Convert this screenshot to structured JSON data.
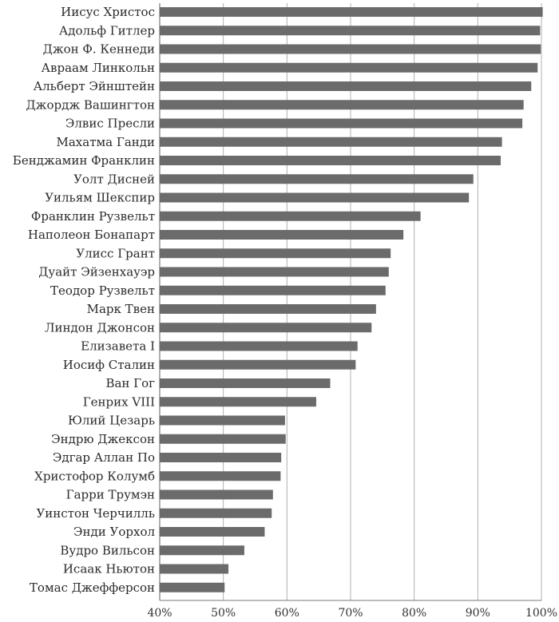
{
  "chart_data": {
    "type": "bar",
    "orientation": "horizontal",
    "title": "",
    "xlabel": "",
    "ylabel": "",
    "categories": [
      "Иисус Христос",
      "Адольф Гитлер",
      "Джон Ф. Кеннеди",
      "Авраам Линкольн",
      "Альберт Эйнштейн",
      "Джордж Вашингтон",
      "Элвис Пресли",
      "Махатма Ганди",
      "Бенджамин Франклин",
      "Уолт Дисней",
      "Уильям Шекспир",
      "Франклин Рузвельт",
      "Наполеон Бонапарт",
      "Улисс Грант",
      "Дуайт Эйзенхауэр",
      "Теодор Рузвельт",
      "Марк Твен",
      "Линдон Джонсон",
      "Елизавета I",
      "Иосиф Сталин",
      "Ван Гог",
      "Генрих VIII",
      "Юлий Цезарь",
      "Эндрю Джексон",
      "Эдгар Аллан По",
      "Христофор Колумб",
      "Гарри Трумэн",
      "Уинстон Черчилль",
      "Энди Уорхол",
      "Вудро Вильсон",
      "Исаак Ньютон",
      "Томас Джефферсон"
    ],
    "values": [
      100.2,
      99.8,
      99.9,
      99.4,
      98.4,
      97.2,
      97.0,
      93.8,
      93.6,
      89.3,
      88.6,
      81.0,
      78.3,
      76.3,
      76.0,
      75.5,
      74.0,
      73.3,
      71.1,
      70.8,
      66.8,
      64.6,
      59.7,
      59.8,
      59.1,
      59.0,
      57.8,
      57.6,
      56.5,
      53.3,
      50.8,
      50.2
    ],
    "xlim": [
      40,
      100
    ],
    "xticks": [
      40,
      50,
      60,
      70,
      80,
      90,
      100
    ],
    "xtick_labels": [
      "40%",
      "50%",
      "60%",
      "70%",
      "80%",
      "90%",
      "100%"
    ],
    "grid": true,
    "bar_color": "#6b6b6b",
    "grid_color": "#b0b0b0"
  }
}
